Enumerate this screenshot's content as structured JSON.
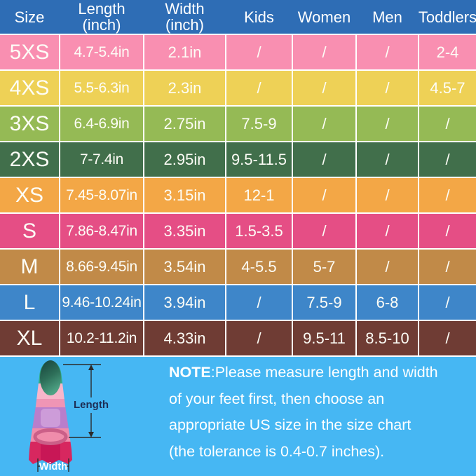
{
  "colors": {
    "header_bg": "#2e6db5",
    "grid_line": "#ffffff",
    "footer_bg": "#46b7f3",
    "cell_text": "#ffffff",
    "length_label_color": "#1d2e55"
  },
  "chart_data": {
    "type": "table",
    "columns": [
      "Size",
      "Length (inch)",
      "Width (inch)",
      "Kids",
      "Women",
      "Men",
      "Toddlers"
    ],
    "header": [
      {
        "label": "Size",
        "sub": ""
      },
      {
        "label": "Length",
        "sub": "(inch)"
      },
      {
        "label": "Width",
        "sub": "(inch)"
      },
      {
        "label": "Kids",
        "sub": ""
      },
      {
        "label": "Women",
        "sub": ""
      },
      {
        "label": "Men",
        "sub": ""
      },
      {
        "label": "Toddlers",
        "sub": ""
      }
    ],
    "fields": [
      "size",
      "length",
      "width",
      "kids",
      "women",
      "men",
      "toddlers"
    ],
    "rows": [
      {
        "size": "5XS",
        "length": "4.7-5.4in",
        "width": "2.1in",
        "kids": "/",
        "women": "/",
        "men": "/",
        "toddlers": "2-4",
        "color": "#f98fb1"
      },
      {
        "size": "4XS",
        "length": "5.5-6.3in",
        "width": "2.3in",
        "kids": "/",
        "women": "/",
        "men": "/",
        "toddlers": "4.5-7",
        "color": "#eed156"
      },
      {
        "size": "3XS",
        "length": "6.4-6.9in",
        "width": "2.75in",
        "kids": "7.5-9",
        "women": "/",
        "men": "/",
        "toddlers": "/",
        "color": "#95ba55"
      },
      {
        "size": "2XS",
        "length": "7-7.4in",
        "width": "2.95in",
        "kids": "9.5-11.5",
        "women": "/",
        "men": "/",
        "toddlers": "/",
        "color": "#416f4b"
      },
      {
        "size": "XS",
        "length": "7.45-8.07in",
        "width": "3.15in",
        "kids": "12-1",
        "women": "/",
        "men": "/",
        "toddlers": "/",
        "color": "#f3a746"
      },
      {
        "size": "S",
        "length": "7.86-8.47in",
        "width": "3.35in",
        "kids": "1.5-3.5",
        "women": "/",
        "men": "/",
        "toddlers": "/",
        "color": "#e54e85"
      },
      {
        "size": "M",
        "length": "8.66-9.45in",
        "width": "3.54in",
        "kids": "4-5.5",
        "women": "5-7",
        "men": "/",
        "toddlers": "/",
        "color": "#c18a48"
      },
      {
        "size": "L",
        "length": "9.46-10.24in",
        "width": "3.94in",
        "kids": "/",
        "women": "7.5-9",
        "men": "6-8",
        "toddlers": "/",
        "color": "#3e86c9"
      },
      {
        "size": "XL",
        "length": "10.2-11.2in",
        "width": "4.33in",
        "kids": "/",
        "women": "9.5-11",
        "men": "8.5-10",
        "toddlers": "/",
        "color": "#6f3c34"
      }
    ]
  },
  "footer": {
    "fin": {
      "length_label": "Length",
      "width_label": "Width"
    },
    "note": {
      "bold": "NOTE",
      "lines": [
        ":Please measure length and width",
        "of your feet first, then choose an",
        "appropriate US size in the size chart",
        "(the tolerance is 0.4-0.7 inches)."
      ]
    }
  }
}
